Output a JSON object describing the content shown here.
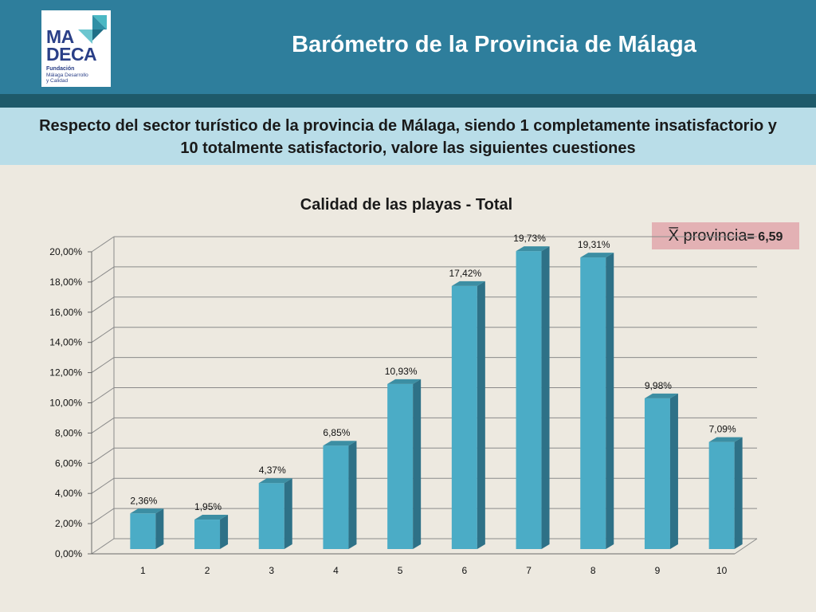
{
  "header": {
    "title": "Barómetro de la Provincia de Málaga",
    "logo": {
      "line1": "MA",
      "line2": "DECA",
      "org": "Fundación",
      "sub1": "Málaga Desarrollo",
      "sub2": "y Calidad"
    }
  },
  "question": "Respecto del sector turístico de la provincia de Málaga, siendo 1 completamente insatisfactorio y 10 totalmente satisfactorio, valore las siguientes cuestiones",
  "mean": {
    "label": "X̅ provincia",
    "value": "= 6,59"
  },
  "colors": {
    "bar_front": "#4bacc6",
    "bar_side": "#2e7187",
    "bar_top": "#3c8ea3",
    "header": "#2e7e9c",
    "band": "#b9dde8"
  },
  "chart_data": {
    "type": "bar",
    "title": "Calidad de las playas - Total",
    "categories": [
      "1",
      "2",
      "3",
      "4",
      "5",
      "6",
      "7",
      "8",
      "9",
      "10"
    ],
    "values": [
      2.36,
      1.95,
      4.37,
      6.85,
      10.93,
      17.42,
      19.73,
      19.31,
      9.98,
      7.09
    ],
    "value_labels": [
      "2,36%",
      "1,95%",
      "4,37%",
      "6,85%",
      "10,93%",
      "17,42%",
      "19,73%",
      "19,31%",
      "9,98%",
      "7,09%"
    ],
    "y_ticks": [
      "0,00%",
      "2,00%",
      "4,00%",
      "6,00%",
      "8,00%",
      "10,00%",
      "12,00%",
      "14,00%",
      "16,00%",
      "18,00%",
      "20,00%"
    ],
    "ylim": [
      0,
      20
    ],
    "grid": true,
    "style": "3d-column"
  }
}
